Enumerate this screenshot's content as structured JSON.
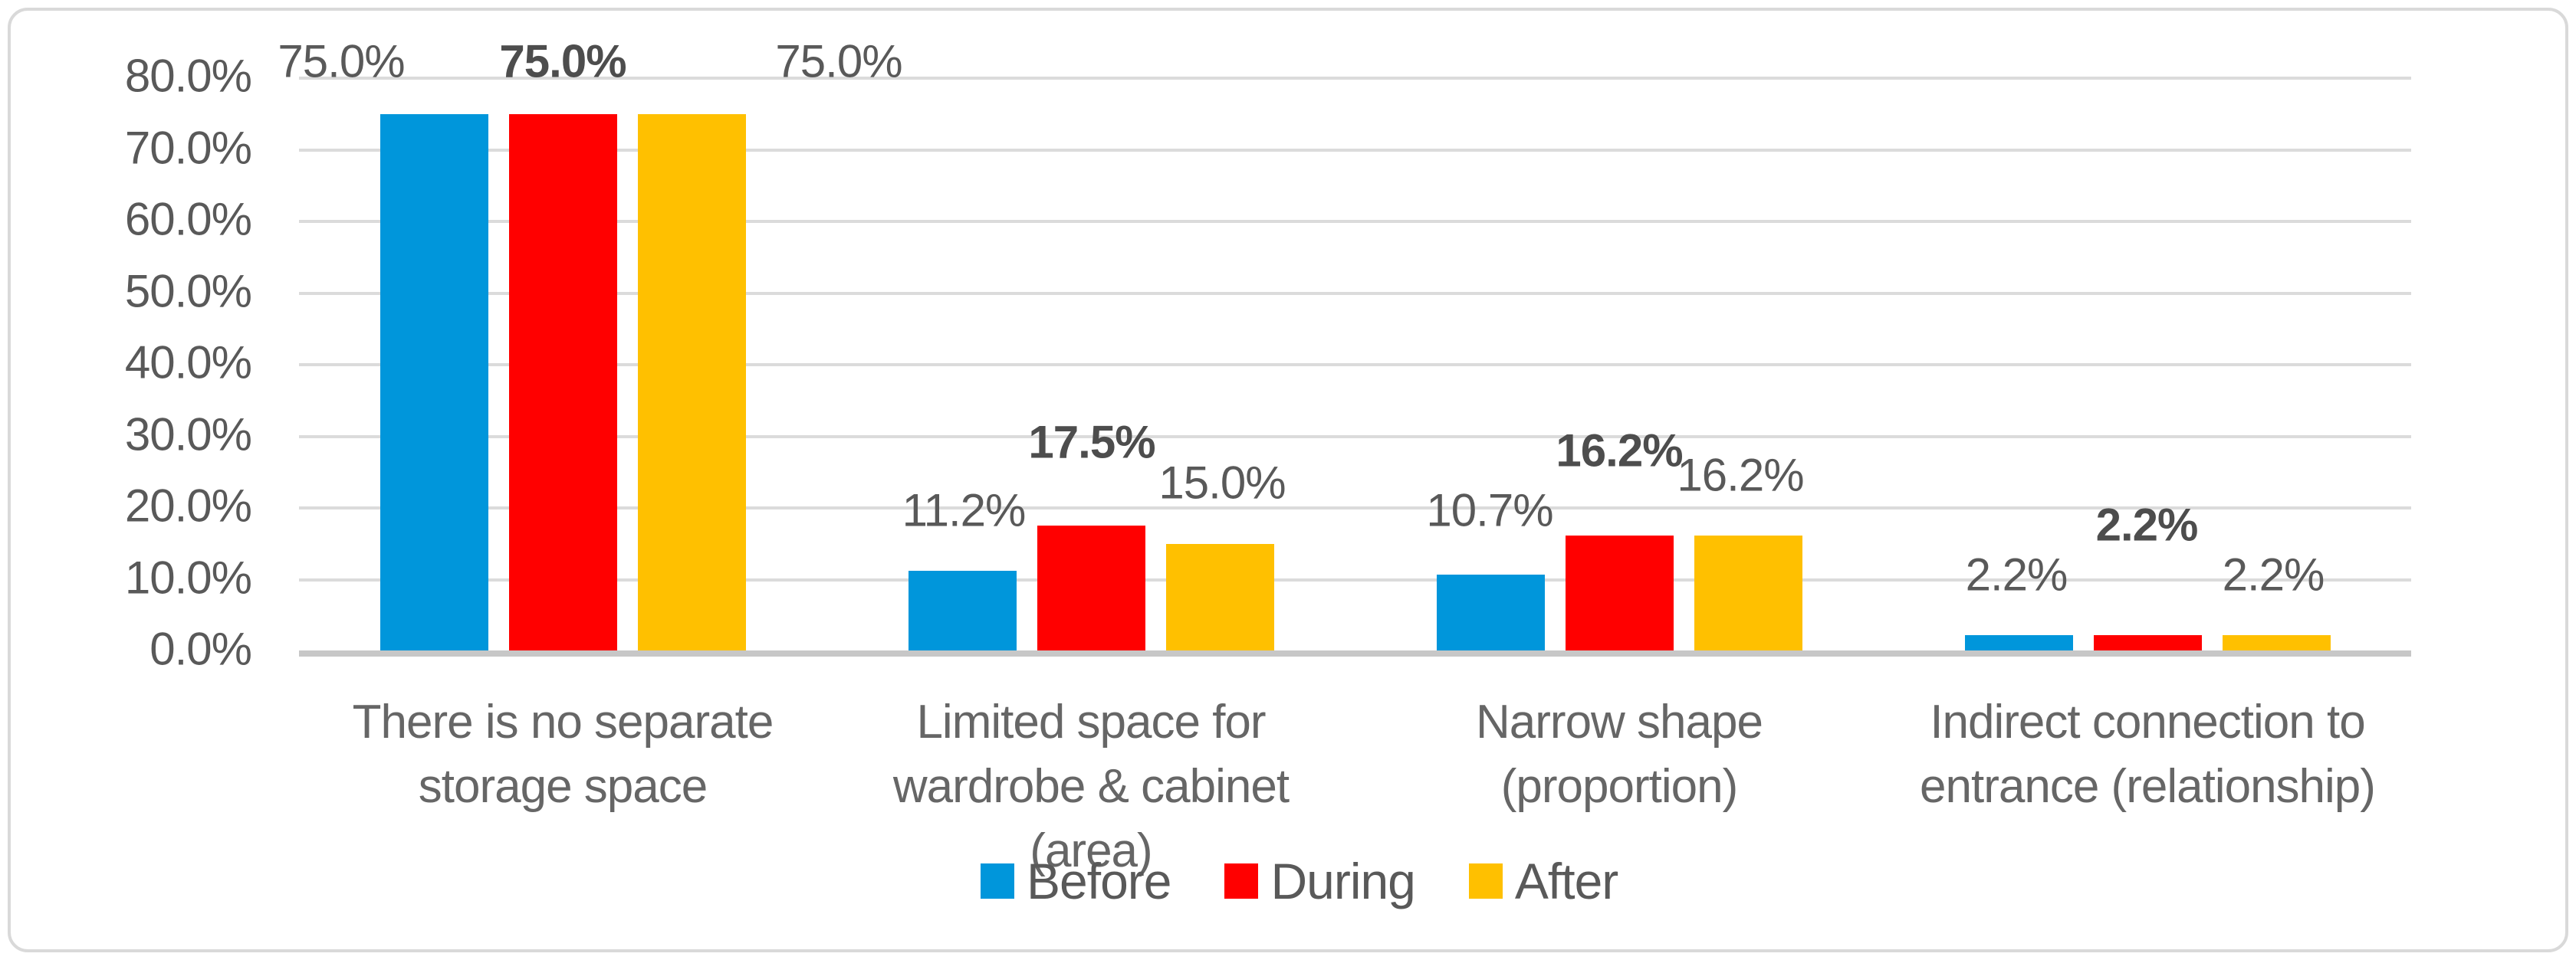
{
  "chart_data": {
    "type": "bar",
    "categories": [
      "There is no separate storage space",
      "Limited space for wardrobe & cabinet (area)",
      "Narrow shape (proportion)",
      "Indirect connection to entrance (relationship)"
    ],
    "category_lines": [
      [
        "There is no separate",
        "storage space"
      ],
      [
        "Limited space for",
        "wardrobe & cabinet",
        "(area)"
      ],
      [
        "Narrow shape",
        "(proportion)"
      ],
      [
        "Indirect connection to",
        "entrance (relationship)"
      ]
    ],
    "series": [
      {
        "name": "Before",
        "color": "#0096DB",
        "values": [
          75.0,
          11.2,
          10.7,
          2.2
        ],
        "labels": [
          "75.0%",
          "11.2%",
          "10.7%",
          "2.2%"
        ],
        "labels_bold": false
      },
      {
        "name": "During",
        "color": "#FF0000",
        "values": [
          75.0,
          17.5,
          16.2,
          2.2
        ],
        "labels": [
          "75.0%",
          "17.5%",
          "16.2%",
          "2.2%"
        ],
        "labels_bold": true
      },
      {
        "name": "After",
        "color": "#FFC000",
        "values": [
          75.0,
          15.0,
          16.2,
          2.2
        ],
        "labels": [
          "75.0%",
          "15.0%",
          "16.2%",
          "2.2%"
        ],
        "labels_bold": false
      }
    ],
    "y_axis": {
      "ticks": [
        "80.0%",
        "70.0%",
        "60.0%",
        "50.0%",
        "40.0%",
        "30.0%",
        "20.0%",
        "10.0%",
        "0.0%"
      ],
      "tick_values": [
        80,
        70,
        60,
        50,
        40,
        30,
        20,
        10,
        0
      ]
    },
    "ylim": [
      0,
      80
    ],
    "grid": true,
    "legend_position": "bottom",
    "title": "",
    "xlabel": "",
    "ylabel": ""
  },
  "legend": {
    "items": [
      {
        "label": "Before",
        "color": "#0096DB"
      },
      {
        "label": "During",
        "color": "#FF0000"
      },
      {
        "label": "After",
        "color": "#FFC000"
      }
    ]
  },
  "colors": {
    "gridline": "#DBDBDB",
    "axis_line": "#C7C7C7",
    "text": "#595959",
    "border": "#D9D9D9"
  }
}
